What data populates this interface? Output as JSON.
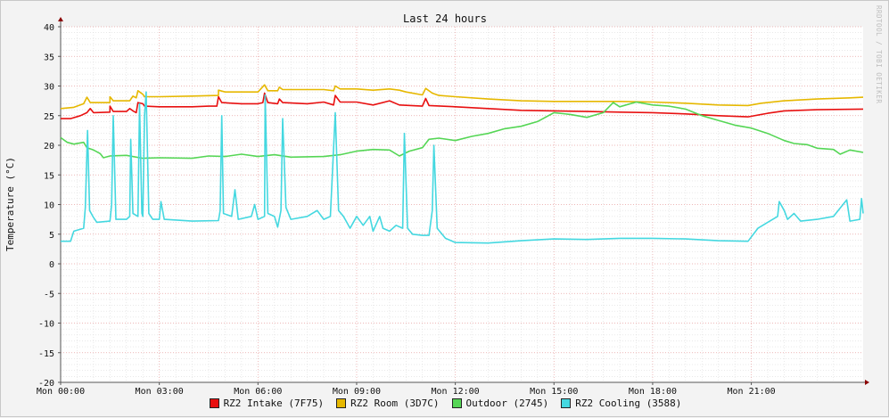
{
  "watermark": "RRDTOOL / TOBI OETIKER",
  "chart_data": {
    "type": "line",
    "title": "Last 24 hours",
    "xlabel": "",
    "ylabel": "Temperature (°C)",
    "x_unit": "hours since Mon 00:00",
    "xlim": [
      0,
      24.4
    ],
    "ylim": [
      -20,
      40
    ],
    "yticks": [
      40,
      35,
      30,
      25,
      20,
      15,
      10,
      5,
      0,
      -5,
      -10,
      -15,
      -20
    ],
    "xticks": [
      {
        "value": 0,
        "label": "Mon 00:00"
      },
      {
        "value": 3,
        "label": "Mon 03:00"
      },
      {
        "value": 6,
        "label": "Mon 06:00"
      },
      {
        "value": 9,
        "label": "Mon 09:00"
      },
      {
        "value": 12,
        "label": "Mon 12:00"
      },
      {
        "value": 15,
        "label": "Mon 15:00"
      },
      {
        "value": 18,
        "label": "Mon 18:00"
      },
      {
        "value": 21,
        "label": "Mon 21:00"
      }
    ],
    "grid": true,
    "legend_position": "bottom",
    "series": [
      {
        "name": "RZ2 Intake (7F75)",
        "color": "#e81010",
        "points": [
          [
            0,
            24.5
          ],
          [
            0.3,
            24.5
          ],
          [
            0.6,
            25
          ],
          [
            0.8,
            25.5
          ],
          [
            0.9,
            26.2
          ],
          [
            1.0,
            25.5
          ],
          [
            1.5,
            25.6
          ],
          [
            1.5,
            26.6
          ],
          [
            1.6,
            25.7
          ],
          [
            2.0,
            25.7
          ],
          [
            2.1,
            26.2
          ],
          [
            2.2,
            25.8
          ],
          [
            2.3,
            25.5
          ],
          [
            2.35,
            27.2
          ],
          [
            2.5,
            27
          ],
          [
            2.55,
            26.6
          ],
          [
            3.0,
            26.5
          ],
          [
            4.0,
            26.5
          ],
          [
            4.5,
            26.6
          ],
          [
            4.75,
            26.6
          ],
          [
            4.8,
            28.2
          ],
          [
            4.9,
            27.2
          ],
          [
            5.5,
            27
          ],
          [
            6.0,
            27
          ],
          [
            6.15,
            27.2
          ],
          [
            6.2,
            28.8
          ],
          [
            6.3,
            27.2
          ],
          [
            6.6,
            27
          ],
          [
            6.65,
            27.8
          ],
          [
            6.75,
            27.2
          ],
          [
            7.5,
            27
          ],
          [
            8.0,
            27.3
          ],
          [
            8.3,
            26.8
          ],
          [
            8.35,
            28.4
          ],
          [
            8.5,
            27.3
          ],
          [
            9.0,
            27.3
          ],
          [
            9.5,
            26.8
          ],
          [
            10.0,
            27.5
          ],
          [
            10.3,
            26.8
          ],
          [
            11.0,
            26.6
          ],
          [
            11.1,
            27.9
          ],
          [
            11.2,
            26.7
          ],
          [
            12.0,
            26.5
          ],
          [
            13.0,
            26.2
          ],
          [
            14.0,
            25.9
          ],
          [
            15.0,
            25.8
          ],
          [
            16.0,
            25.7
          ],
          [
            17.0,
            25.6
          ],
          [
            18.0,
            25.5
          ],
          [
            19.0,
            25.3
          ],
          [
            20.0,
            25.0
          ],
          [
            20.9,
            24.8
          ],
          [
            21.5,
            25.4
          ],
          [
            22.0,
            25.8
          ],
          [
            23.0,
            26.0
          ],
          [
            24.4,
            26.1
          ]
        ]
      },
      {
        "name": "RZ2 Room (3D7C)",
        "color": "#e6b800",
        "points": [
          [
            0,
            26.2
          ],
          [
            0.4,
            26.4
          ],
          [
            0.7,
            27
          ],
          [
            0.8,
            28.1
          ],
          [
            0.9,
            27.2
          ],
          [
            1.5,
            27.2
          ],
          [
            1.5,
            28.2
          ],
          [
            1.6,
            27.5
          ],
          [
            2.1,
            27.5
          ],
          [
            2.2,
            28.3
          ],
          [
            2.3,
            28
          ],
          [
            2.35,
            29.2
          ],
          [
            2.5,
            28.6
          ],
          [
            2.55,
            28.2
          ],
          [
            3.0,
            28.2
          ],
          [
            4.0,
            28.3
          ],
          [
            4.8,
            28.4
          ],
          [
            4.8,
            29.3
          ],
          [
            5.0,
            29
          ],
          [
            6.0,
            29
          ],
          [
            6.2,
            30.2
          ],
          [
            6.3,
            29.2
          ],
          [
            6.6,
            29.2
          ],
          [
            6.65,
            29.8
          ],
          [
            6.75,
            29.4
          ],
          [
            7.5,
            29.4
          ],
          [
            8.0,
            29.4
          ],
          [
            8.3,
            29.2
          ],
          [
            8.35,
            30
          ],
          [
            8.5,
            29.5
          ],
          [
            9.0,
            29.5
          ],
          [
            9.5,
            29.3
          ],
          [
            10.0,
            29.5
          ],
          [
            10.3,
            29.3
          ],
          [
            10.5,
            29
          ],
          [
            11.0,
            28.5
          ],
          [
            11.1,
            29.6
          ],
          [
            11.3,
            28.8
          ],
          [
            11.5,
            28.4
          ],
          [
            12.0,
            28.2
          ],
          [
            13.0,
            27.8
          ],
          [
            14.0,
            27.5
          ],
          [
            15.0,
            27.4
          ],
          [
            16.0,
            27.4
          ],
          [
            17.0,
            27.4
          ],
          [
            18.0,
            27.3
          ],
          [
            19.0,
            27.1
          ],
          [
            20.0,
            26.8
          ],
          [
            20.9,
            26.7
          ],
          [
            21.3,
            27.1
          ],
          [
            22.0,
            27.5
          ],
          [
            23.0,
            27.8
          ],
          [
            24.0,
            28.0
          ],
          [
            24.4,
            28.1
          ]
        ]
      },
      {
        "name": "Outdoor (2745)",
        "color": "#55d655",
        "points": [
          [
            0,
            21.3
          ],
          [
            0.2,
            20.5
          ],
          [
            0.4,
            20.2
          ],
          [
            0.7,
            20.5
          ],
          [
            0.8,
            19.6
          ],
          [
            1.0,
            19.2
          ],
          [
            1.2,
            18.6
          ],
          [
            1.3,
            17.9
          ],
          [
            1.5,
            18.2
          ],
          [
            2.0,
            18.3
          ],
          [
            2.5,
            17.8
          ],
          [
            3.0,
            17.9
          ],
          [
            4.0,
            17.8
          ],
          [
            4.5,
            18.2
          ],
          [
            5.0,
            18.1
          ],
          [
            5.5,
            18.5
          ],
          [
            6.0,
            18.1
          ],
          [
            6.5,
            18.4
          ],
          [
            7.0,
            18.0
          ],
          [
            8.0,
            18.1
          ],
          [
            8.5,
            18.4
          ],
          [
            9.0,
            19.0
          ],
          [
            9.5,
            19.3
          ],
          [
            10.0,
            19.2
          ],
          [
            10.3,
            18.2
          ],
          [
            10.6,
            19.0
          ],
          [
            11.0,
            19.6
          ],
          [
            11.2,
            21.0
          ],
          [
            11.5,
            21.2
          ],
          [
            12.0,
            20.8
          ],
          [
            12.5,
            21.5
          ],
          [
            13.0,
            22.0
          ],
          [
            13.5,
            22.8
          ],
          [
            14.0,
            23.2
          ],
          [
            14.5,
            24.0
          ],
          [
            15.0,
            25.5
          ],
          [
            15.5,
            25.2
          ],
          [
            16.0,
            24.7
          ],
          [
            16.5,
            25.5
          ],
          [
            16.8,
            27.2
          ],
          [
            17.0,
            26.5
          ],
          [
            17.5,
            27.3
          ],
          [
            18.0,
            26.8
          ],
          [
            18.5,
            26.6
          ],
          [
            19.0,
            26.1
          ],
          [
            19.5,
            25.0
          ],
          [
            20.0,
            24.2
          ],
          [
            20.5,
            23.4
          ],
          [
            21.0,
            22.9
          ],
          [
            21.5,
            22.0
          ],
          [
            22.0,
            20.8
          ],
          [
            22.3,
            20.3
          ],
          [
            22.7,
            20.1
          ],
          [
            23.0,
            19.5
          ],
          [
            23.5,
            19.3
          ],
          [
            23.7,
            18.5
          ],
          [
            24.0,
            19.2
          ],
          [
            24.4,
            18.8
          ]
        ]
      },
      {
        "name": "RZ2 Cooling (3588)",
        "color": "#44d8e0",
        "points": [
          [
            0,
            3.8
          ],
          [
            0.3,
            3.8
          ],
          [
            0.4,
            5.5
          ],
          [
            0.7,
            6
          ],
          [
            0.75,
            9.5
          ],
          [
            0.82,
            22.5
          ],
          [
            0.88,
            9
          ],
          [
            1.0,
            7.8
          ],
          [
            1.1,
            7
          ],
          [
            1.5,
            7.2
          ],
          [
            1.55,
            10
          ],
          [
            1.6,
            25
          ],
          [
            1.68,
            7.5
          ],
          [
            2.0,
            7.5
          ],
          [
            2.1,
            8
          ],
          [
            2.13,
            21
          ],
          [
            2.2,
            8.5
          ],
          [
            2.35,
            8
          ],
          [
            2.4,
            27
          ],
          [
            2.47,
            8.5
          ],
          [
            2.5,
            8
          ],
          [
            2.55,
            25
          ],
          [
            2.6,
            29
          ],
          [
            2.68,
            8.5
          ],
          [
            2.8,
            7.5
          ],
          [
            3.0,
            7.5
          ],
          [
            3.05,
            10.5
          ],
          [
            3.15,
            7.5
          ],
          [
            4.0,
            7.2
          ],
          [
            4.8,
            7.3
          ],
          [
            4.85,
            9
          ],
          [
            4.9,
            25
          ],
          [
            4.95,
            8.5
          ],
          [
            5.2,
            8
          ],
          [
            5.3,
            12.5
          ],
          [
            5.4,
            7.5
          ],
          [
            5.8,
            8
          ],
          [
            5.9,
            10
          ],
          [
            6.0,
            7.5
          ],
          [
            6.2,
            8
          ],
          [
            6.22,
            28.5
          ],
          [
            6.3,
            8.5
          ],
          [
            6.5,
            8
          ],
          [
            6.6,
            6.2
          ],
          [
            6.7,
            9
          ],
          [
            6.75,
            24.5
          ],
          [
            6.85,
            9.5
          ],
          [
            7.0,
            7.5
          ],
          [
            7.5,
            8
          ],
          [
            7.8,
            9
          ],
          [
            8.0,
            7.5
          ],
          [
            8.2,
            8
          ],
          [
            8.35,
            25.5
          ],
          [
            8.45,
            9
          ],
          [
            8.6,
            8
          ],
          [
            8.7,
            7
          ],
          [
            8.8,
            6
          ],
          [
            9.0,
            8
          ],
          [
            9.2,
            6.5
          ],
          [
            9.4,
            8
          ],
          [
            9.5,
            5.5
          ],
          [
            9.7,
            8
          ],
          [
            9.8,
            6
          ],
          [
            10.0,
            5.5
          ],
          [
            10.2,
            6.5
          ],
          [
            10.4,
            6
          ],
          [
            10.45,
            22
          ],
          [
            10.55,
            6
          ],
          [
            10.7,
            5
          ],
          [
            11.0,
            4.8
          ],
          [
            11.2,
            4.8
          ],
          [
            11.3,
            9
          ],
          [
            11.35,
            20
          ],
          [
            11.45,
            6
          ],
          [
            11.7,
            4.3
          ],
          [
            12.0,
            3.6
          ],
          [
            13.0,
            3.5
          ],
          [
            14.0,
            3.9
          ],
          [
            15.0,
            4.2
          ],
          [
            16.0,
            4.1
          ],
          [
            17.0,
            4.3
          ],
          [
            18.0,
            4.3
          ],
          [
            19.0,
            4.2
          ],
          [
            20.0,
            3.9
          ],
          [
            20.9,
            3.8
          ],
          [
            21.2,
            6
          ],
          [
            21.5,
            7
          ],
          [
            21.8,
            8
          ],
          [
            21.85,
            10.5
          ],
          [
            22.0,
            9
          ],
          [
            22.1,
            7.5
          ],
          [
            22.3,
            8.5
          ],
          [
            22.5,
            7.2
          ],
          [
            23.0,
            7.5
          ],
          [
            23.5,
            8
          ],
          [
            23.9,
            10.8
          ],
          [
            24.0,
            7.2
          ],
          [
            24.3,
            7.5
          ],
          [
            24.35,
            11
          ],
          [
            24.4,
            8.5
          ]
        ]
      }
    ]
  }
}
